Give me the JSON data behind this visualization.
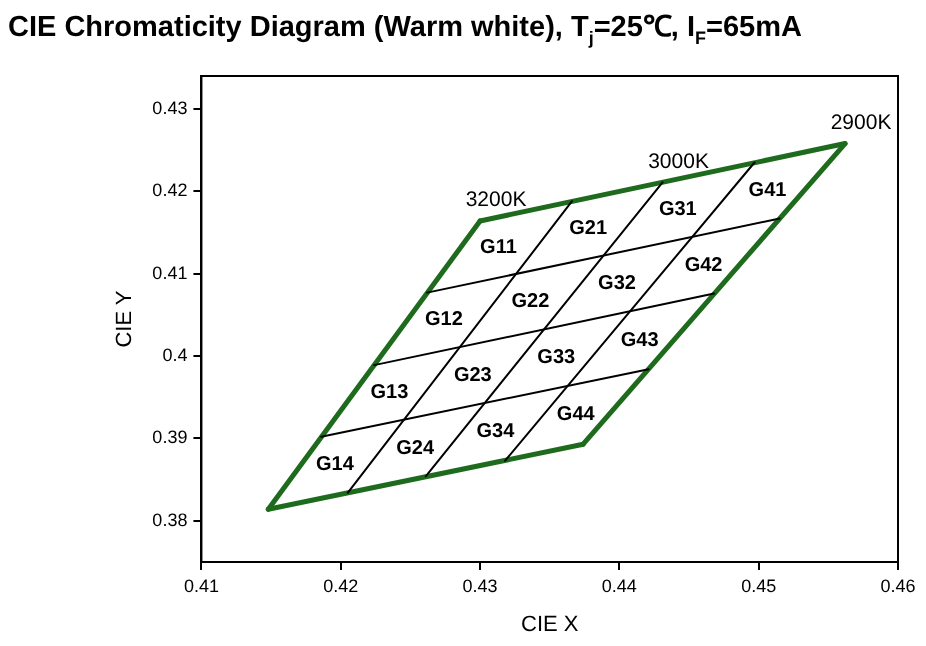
{
  "chart_data": {
    "type": "line",
    "title": "CIE Chromaticity Diagram (Warm white),  T$_{j}$=25℃, I$_{F}$=65mA",
    "xlabel": "CIE X",
    "ylabel": "CIE Y",
    "xlim": [
      0.41,
      0.46
    ],
    "xticks": [
      0.41,
      0.42,
      0.43,
      0.44,
      0.45,
      0.46
    ],
    "ylim": [
      0.375,
      0.434
    ],
    "yticks": [
      0.38,
      0.39,
      0.4,
      0.41,
      0.42,
      0.43
    ],
    "grid": false,
    "legend": false,
    "marker": "none",
    "line_style": "solid",
    "series": [
      {
        "color": "#000000",
        "x": [
          0.4205,
          0.4366
        ],
        "values": [
          0.3834,
          0.4188
        ]
      },
      {
        "color": "#000000",
        "x": [
          0.4261,
          0.4431
        ],
        "values": [
          0.3854,
          0.4211
        ]
      },
      {
        "color": "#000000",
        "x": [
          0.4318,
          0.4497
        ],
        "values": [
          0.3873,
          0.4235
        ]
      },
      {
        "color": "#000000",
        "x": [
          0.4262,
          0.4515
        ],
        "values": [
          0.4077,
          0.4167
        ]
      },
      {
        "color": "#000000",
        "x": [
          0.4224,
          0.4468
        ],
        "values": [
          0.3989,
          0.4076
        ]
      },
      {
        "color": "#000000",
        "x": [
          0.4186,
          0.4421
        ],
        "values": [
          0.3902,
          0.3984
        ]
      },
      {
        "color": "#1e6b1e",
        "x": [
          0.4148,
          0.4374
        ],
        "values": [
          0.3814,
          0.3893
        ]
      },
      {
        "color": "#1e6b1e",
        "x": [
          0.4374,
          0.4562
        ],
        "values": [
          0.3893,
          0.4258
        ]
      },
      {
        "color": "#1e6b1e",
        "x": [
          0.43,
          0.4562
        ],
        "values": [
          0.4164,
          0.4258
        ]
      },
      {
        "color": "#1e6b1e",
        "x": [
          0.4148,
          0.43
        ],
        "values": [
          0.3814,
          0.4164
        ]
      }
    ],
    "annotations": [
      {
        "text": "3200K",
        "x": 0.43,
        "y": 0.4164
      },
      {
        "text": "3000K",
        "x": 0.4431,
        "y": 0.4211
      },
      {
        "text": "2900K",
        "x": 0.4562,
        "y": 0.4258
      },
      "G11",
      "G21",
      "G31",
      "G41",
      "G12",
      "G22",
      "G32",
      "G42",
      "G13",
      "G23",
      "G33",
      "G43",
      "G14",
      "G24",
      "G34",
      "G44"
    ]
  }
}
